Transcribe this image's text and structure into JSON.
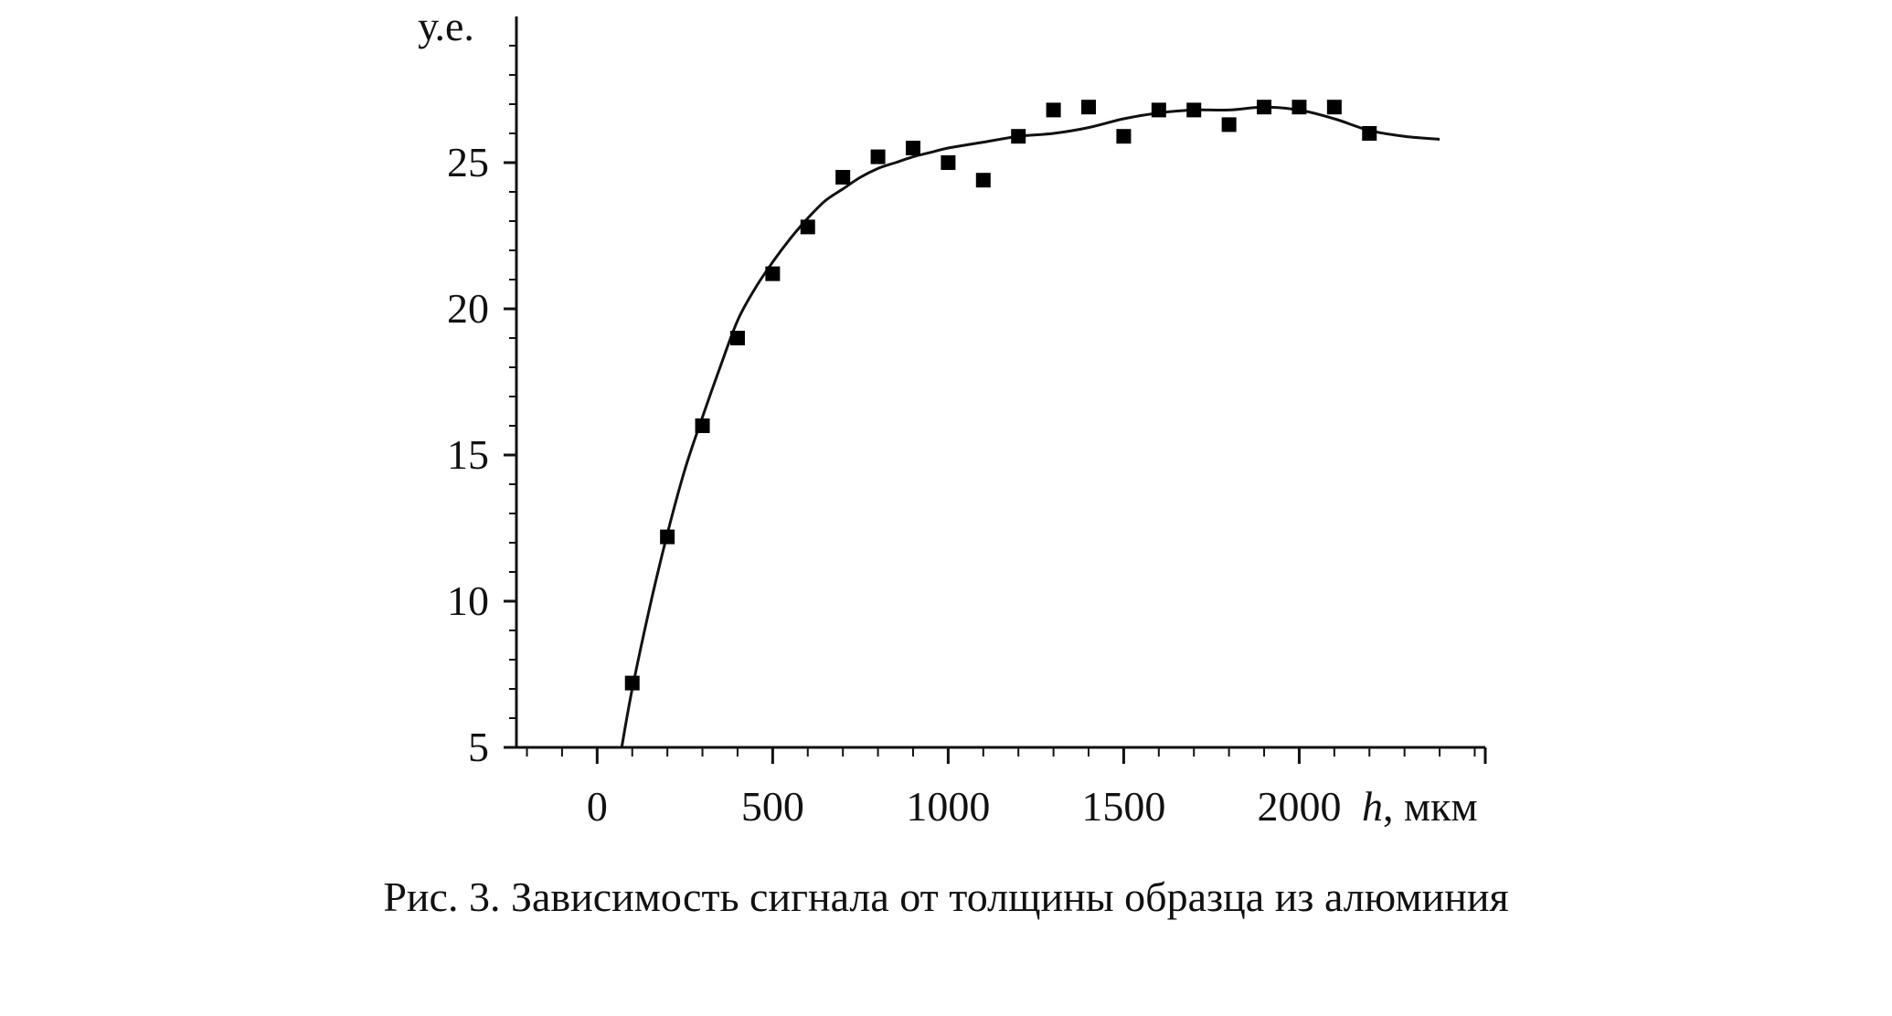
{
  "figure": {
    "caption": "Рис. 3. Зависимость сигнала от толщины образца из алюминия"
  },
  "chart_data": {
    "type": "scatter",
    "ylabel": "у.е.",
    "xlabel_var": "h",
    "xlabel_unit": ", мкм",
    "xlim": [
      -230,
      2530
    ],
    "ylim": [
      5,
      30
    ],
    "xticks": [
      0,
      500,
      1000,
      1500,
      2000
    ],
    "yticks": [
      5,
      10,
      15,
      20,
      25
    ],
    "grid": false,
    "series": [
      {
        "kind": "points",
        "marker": "filled-square",
        "x": [
          100,
          200,
          300,
          400,
          500,
          600,
          700,
          800,
          900,
          1000,
          1100,
          1200,
          1300,
          1400,
          1500,
          1600,
          1700,
          1800,
          1900,
          2000,
          2100,
          2200
        ],
        "y": [
          7.2,
          12.2,
          16.0,
          19.0,
          21.2,
          22.8,
          24.5,
          25.2,
          25.5,
          25.0,
          24.4,
          25.9,
          26.8,
          26.9,
          25.9,
          26.8,
          26.8,
          26.3,
          26.9,
          26.9,
          26.9,
          26.0
        ]
      },
      {
        "kind": "fit-curve",
        "x": [
          70,
          100,
          150,
          200,
          250,
          300,
          350,
          400,
          450,
          500,
          550,
          600,
          650,
          700,
          750,
          800,
          850,
          900,
          950,
          1000,
          1100,
          1200,
          1300,
          1400,
          1500,
          1600,
          1700,
          1800,
          1900,
          2000,
          2100,
          2200,
          2300,
          2400
        ],
        "y": [
          5.0,
          7.0,
          9.8,
          12.3,
          14.5,
          16.3,
          18.0,
          19.6,
          20.7,
          21.6,
          22.4,
          23.1,
          23.7,
          24.1,
          24.5,
          24.8,
          25.0,
          25.2,
          25.35,
          25.5,
          25.7,
          25.9,
          26.0,
          26.2,
          26.5,
          26.7,
          26.8,
          26.8,
          26.9,
          26.8,
          26.5,
          26.1,
          25.9,
          25.8
        ]
      }
    ]
  }
}
